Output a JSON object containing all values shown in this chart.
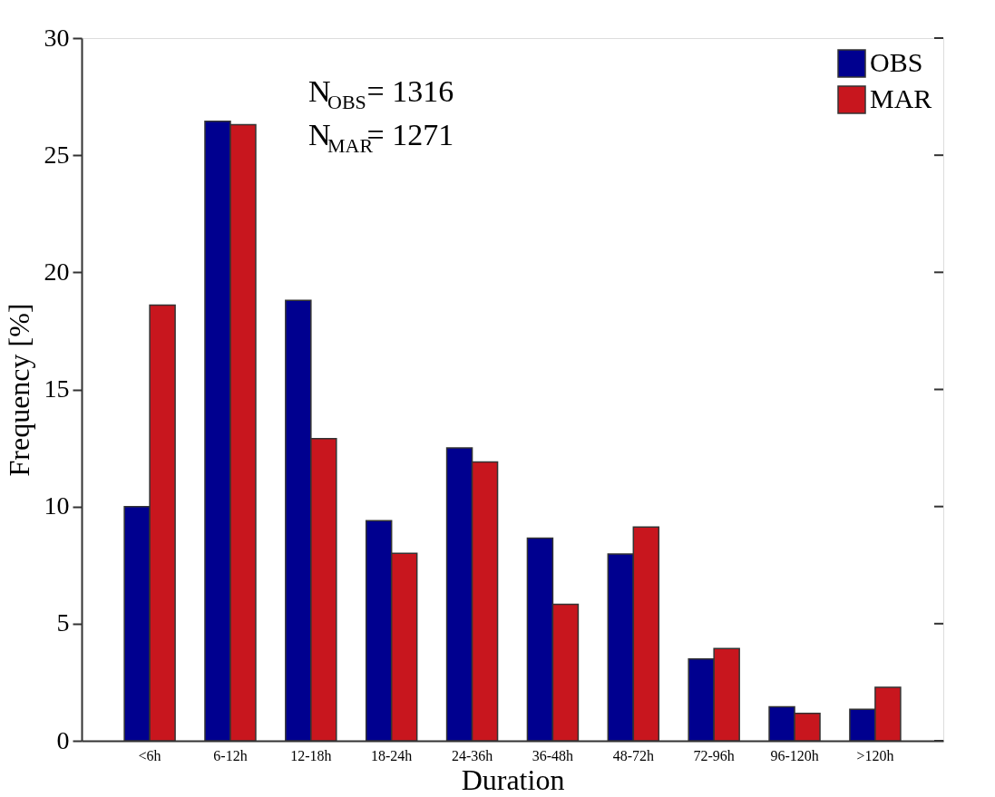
{
  "chart_data": {
    "type": "bar",
    "categories": [
      "<6h",
      "6-12h",
      "12-18h",
      "18-24h",
      "24-36h",
      "36-48h",
      "48-72h",
      "72-96h",
      "96-120h",
      ">120h"
    ],
    "series": [
      {
        "name": "OBS",
        "color": "#00008f",
        "values": [
          10.0,
          26.45,
          18.8,
          9.4,
          12.5,
          8.65,
          7.97,
          3.49,
          1.45,
          1.35
        ]
      },
      {
        "name": "MAR",
        "color": "#c8161e",
        "values": [
          18.6,
          26.3,
          12.9,
          8.0,
          11.9,
          5.83,
          9.13,
          3.94,
          1.17,
          2.28
        ]
      }
    ],
    "xlabel": "Duration",
    "ylabel": "Frequency [%]",
    "ylim": [
      0,
      30
    ],
    "yticks": [
      0,
      5,
      10,
      15,
      20,
      25,
      30
    ],
    "annotations": [
      "N$_{OBS}$= 1316",
      "N$_{MAR}$= 1271"
    ],
    "legend": "top right",
    "grid": false
  }
}
